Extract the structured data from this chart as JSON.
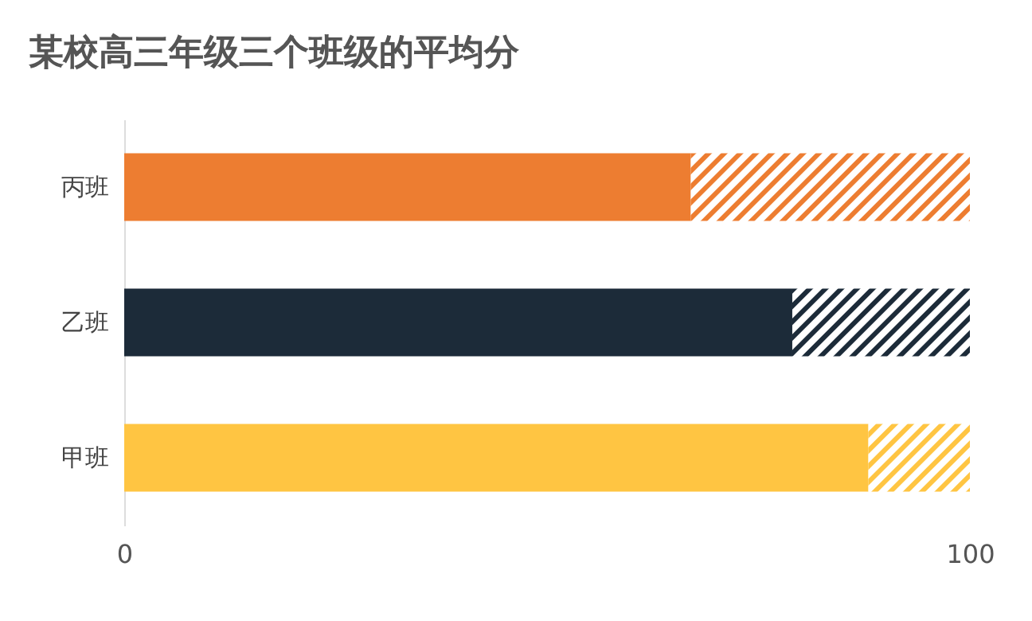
{
  "chart_data": {
    "type": "bar",
    "title": "某校高三年级三个班级的平均分",
    "orientation": "horizontal",
    "stacked": true,
    "categories": [
      "丙班",
      "乙班",
      "甲班"
    ],
    "series": [
      {
        "colors": [
          "#ed7d31",
          "#1c2b39",
          "#ffc542"
        ],
        "values": [
          67,
          79,
          88
        ]
      },
      {
        "colors": [
          "#ed7d31",
          "#1c2b39",
          "#ffc542"
        ],
        "values": [
          33,
          21,
          12
        ]
      }
    ],
    "xlim": [
      0,
      100
    ],
    "xticks": [
      0,
      100
    ],
    "grid": false
  }
}
